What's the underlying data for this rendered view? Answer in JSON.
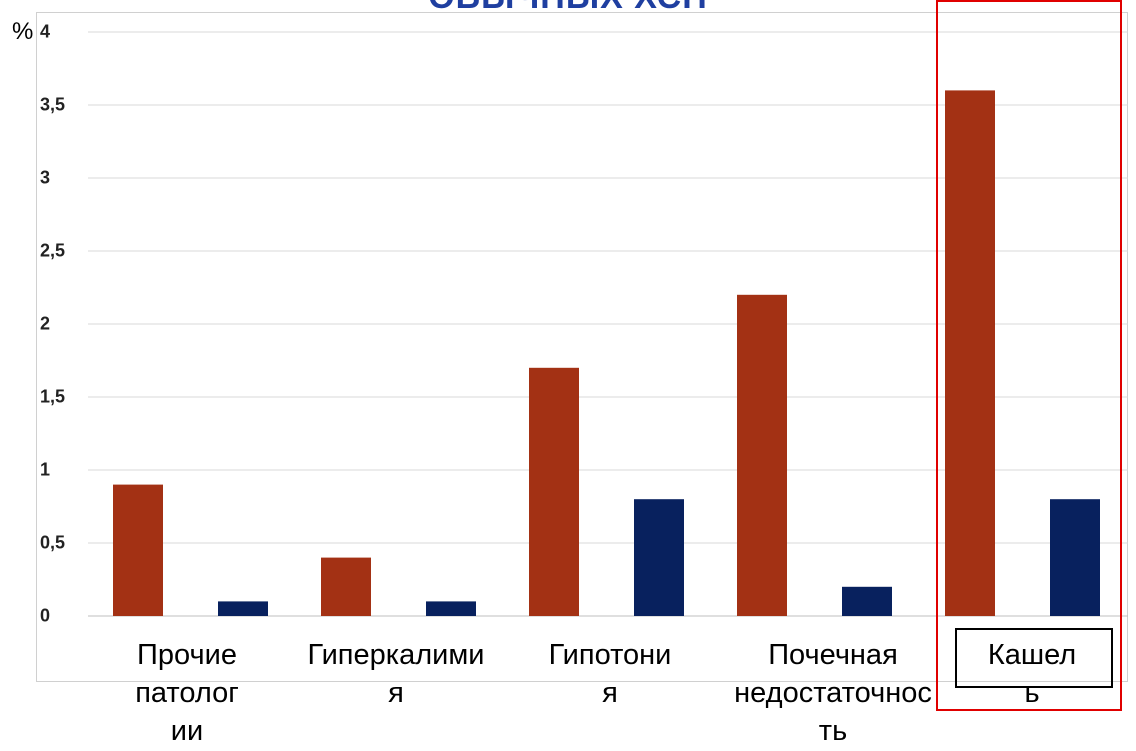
{
  "title": "ОБЫЧНЫХ ХСН",
  "ylabel": "%",
  "chart_data": {
    "type": "bar",
    "categories": [
      "Прочие\nпатолог\nии",
      "Гиперкалими\nя",
      "Гипотони\nя",
      "Почечная\nнедостаточнос\nть",
      "Кашел\nь"
    ],
    "series": [
      {
        "values": [
          0.9,
          0.4,
          1.7,
          2.2,
          3.6
        ],
        "color": "#a33114"
      },
      {
        "values": [
          0.1,
          0.1,
          0.8,
          0.2,
          0.8
        ],
        "color": "#08215e"
      }
    ],
    "ylim": [
      0,
      4
    ],
    "yticks": [
      "0",
      "0,5",
      "1",
      "1,5",
      "2",
      "2,5",
      "3",
      "3,5",
      "4"
    ],
    "xlabel": "",
    "grid": true,
    "highlighted_category": "Кашел\nь",
    "highlight_color": "#e00000"
  }
}
